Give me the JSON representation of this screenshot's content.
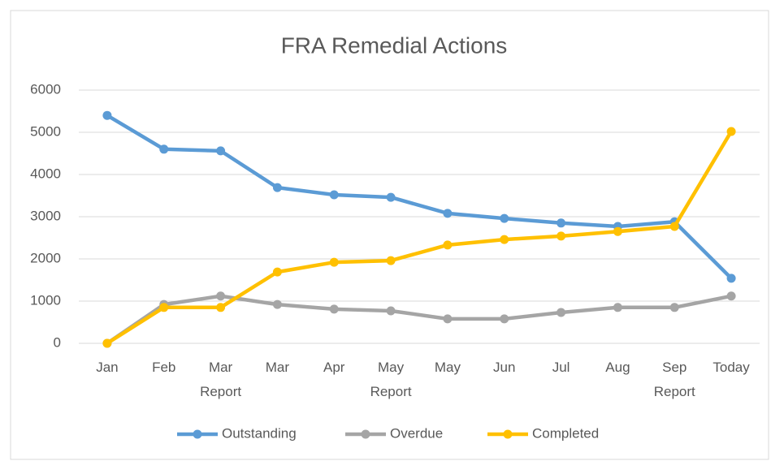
{
  "chart_data": {
    "type": "line",
    "title": "FRA Remedial Actions",
    "categories": [
      "Jan",
      "Feb",
      "Mar Report",
      "Mar",
      "Apr",
      "May Report",
      "May",
      "Jun",
      "Jul",
      "Aug",
      "Sep Report",
      "Today"
    ],
    "series": [
      {
        "name": "Outstanding",
        "color": "#5b9bd5",
        "values": [
          5400,
          4600,
          4560,
          3690,
          3520,
          3460,
          3080,
          2960,
          2850,
          2770,
          2880,
          1540
        ]
      },
      {
        "name": "Overdue",
        "color": "#a5a5a5",
        "values": [
          0,
          920,
          1120,
          920,
          810,
          770,
          580,
          580,
          730,
          850,
          850,
          1120
        ]
      },
      {
        "name": "Completed",
        "color": "#ffc000",
        "values": [
          0,
          850,
          850,
          1690,
          1920,
          1960,
          2330,
          2460,
          2540,
          2650,
          2770,
          5020
        ]
      }
    ],
    "ylim": [
      0,
      6000
    ],
    "yticks": [
      0,
      1000,
      2000,
      3000,
      4000,
      5000,
      6000
    ],
    "grid": true,
    "legend": "bottom"
  }
}
